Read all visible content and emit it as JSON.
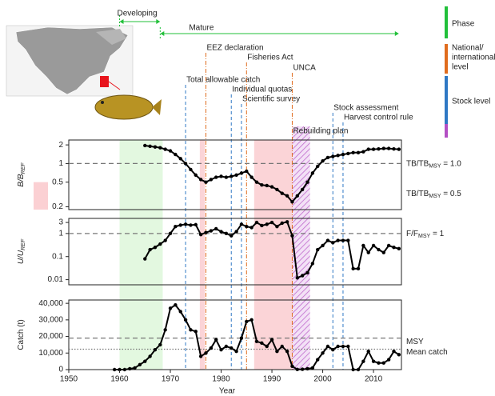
{
  "chart_data": [
    {
      "type": "line",
      "log": true,
      "y_label": [
        "B/B",
        "REF"
      ],
      "ylim": [
        0.18,
        2.4
      ],
      "yticks": [
        0.2,
        0.5,
        1,
        2
      ],
      "xlim": [
        1950,
        2015.5
      ],
      "ref_lines": [
        {
          "value": 1,
          "style": "dashed",
          "label": [
            "TB/TB",
            "MSY",
            " = 1.0"
          ],
          "label_color": "#222"
        }
      ],
      "ref_bands": [
        {
          "value": 0.5,
          "color": "#fbd0d3",
          "label": [
            "TB/TB",
            "MSY",
            " = 0.5"
          ],
          "label_color": "#f0505a"
        }
      ],
      "series": [
        {
          "color": "#000000",
          "x": [
            1965,
            1966,
            1967,
            1968,
            1969,
            1970,
            1971,
            1972,
            1973,
            1974,
            1975,
            1976,
            1977,
            1978,
            1979,
            1980,
            1981,
            1982,
            1983,
            1984,
            1985,
            1986,
            1987,
            1988,
            1989,
            1990,
            1991,
            1992,
            1993,
            1994,
            1995,
            1996,
            1997,
            1998,
            1999,
            2000,
            2001,
            2002,
            2003,
            2004,
            2005,
            2006,
            2007,
            2008,
            2009,
            2010,
            2011,
            2012,
            2013,
            2014,
            2015
          ],
          "values": [
            1.95,
            1.9,
            1.85,
            1.8,
            1.7,
            1.6,
            1.4,
            1.2,
            1.0,
            0.8,
            0.65,
            0.55,
            0.5,
            0.55,
            0.6,
            0.62,
            0.6,
            0.62,
            0.65,
            0.7,
            0.75,
            0.6,
            0.5,
            0.45,
            0.44,
            0.42,
            0.38,
            0.33,
            0.3,
            0.24,
            0.3,
            0.38,
            0.5,
            0.7,
            0.9,
            1.1,
            1.25,
            1.3,
            1.35,
            1.4,
            1.45,
            1.5,
            1.5,
            1.55,
            1.7,
            1.7,
            1.72,
            1.75,
            1.75,
            1.72,
            1.7
          ]
        }
      ]
    },
    {
      "type": "line",
      "log": true,
      "y_label": [
        "U/U",
        "REF"
      ],
      "ylim": [
        0.006,
        4.5
      ],
      "yticks": [
        0.01,
        0.1,
        1,
        3
      ],
      "xlim": [
        1950,
        2015.5
      ],
      "ref_lines": [
        {
          "value": 1,
          "style": "dashed",
          "label": [
            "F/F",
            "MSY",
            " = 1"
          ],
          "label_color": "#222"
        }
      ],
      "series": [
        {
          "color": "#000000",
          "x": [
            1965,
            1966,
            1967,
            1968,
            1969,
            1970,
            1971,
            1972,
            1973,
            1974,
            1975,
            1976,
            1977,
            1978,
            1979,
            1980,
            1981,
            1982,
            1983,
            1984,
            1985,
            1986,
            1987,
            1988,
            1989,
            1990,
            1991,
            1992,
            1993,
            1994,
            1995,
            1996,
            1997,
            1998,
            1999,
            2000,
            2001,
            2002,
            2003,
            2004,
            2005,
            2006,
            2007,
            2008,
            2009,
            2010,
            2011,
            2012,
            2013,
            2014,
            2015
          ],
          "values": [
            0.08,
            0.2,
            0.25,
            0.35,
            0.5,
            1.0,
            2.0,
            2.3,
            2.5,
            2.3,
            2.4,
            0.9,
            1.1,
            1.3,
            1.6,
            1.2,
            1.0,
            0.8,
            1.2,
            2.5,
            2.0,
            1.8,
            3.0,
            2.2,
            2.5,
            3.0,
            2.0,
            2.8,
            3.2,
            0.8,
            0.012,
            0.015,
            0.02,
            0.05,
            0.2,
            0.3,
            0.5,
            0.4,
            0.5,
            0.5,
            0.5,
            0.03,
            0.03,
            0.3,
            0.15,
            0.3,
            0.2,
            0.15,
            0.3,
            0.25,
            0.22
          ]
        }
      ]
    },
    {
      "type": "line",
      "log": false,
      "y_label": [
        "Catch (t)"
      ],
      "ylim": [
        0,
        42000
      ],
      "yticks": [
        0,
        {
          "value": 10000,
          "label": "10,000"
        },
        {
          "value": 20000,
          "label": "20,000"
        },
        {
          "value": 30000,
          "label": "30,000"
        },
        {
          "value": 40000,
          "label": "40,000"
        }
      ],
      "xlim": [
        1950,
        2015.5
      ],
      "xticks": [
        1950,
        1960,
        1970,
        1980,
        1990,
        2000,
        2010
      ],
      "x_label": "Year",
      "ref_lines": [
        {
          "value": 19000,
          "style": "dashed",
          "label": [
            "MSY"
          ],
          "label_color": "#222"
        },
        {
          "value": 12300,
          "style": "dotted",
          "label": [
            "Mean catch"
          ],
          "label_color": "#222"
        }
      ],
      "series": [
        {
          "color": "#000000",
          "x": [
            1959,
            1960,
            1961,
            1962,
            1963,
            1964,
            1965,
            1966,
            1967,
            1968,
            1969,
            1970,
            1971,
            1972,
            1973,
            1974,
            1975,
            1976,
            1977,
            1978,
            1979,
            1980,
            1981,
            1982,
            1983,
            1984,
            1985,
            1986,
            1987,
            1988,
            1989,
            1990,
            1991,
            1992,
            1993,
            1994,
            1995,
            1996,
            1997,
            1998,
            1999,
            2000,
            2001,
            2002,
            2003,
            2004,
            2005,
            2006,
            2007,
            2008,
            2009,
            2010,
            2011,
            2012,
            2013,
            2014,
            2015
          ],
          "values": [
            0,
            0,
            0,
            500,
            1000,
            3000,
            5000,
            8000,
            12000,
            15000,
            24000,
            37000,
            39000,
            35000,
            30000,
            24000,
            23000,
            8000,
            10000,
            13000,
            18000,
            12000,
            14000,
            13000,
            11000,
            19000,
            29000,
            30000,
            17000,
            16000,
            14000,
            18000,
            11000,
            14000,
            11000,
            2000,
            100,
            200,
            500,
            1000,
            6000,
            10000,
            14000,
            12000,
            14000,
            14000,
            14000,
            0,
            0,
            5000,
            11000,
            5000,
            4000,
            4000,
            6000,
            11000,
            9000
          ]
        }
      ]
    }
  ],
  "timeline": {
    "phases": [
      {
        "label": "Developing",
        "start": 1960,
        "end": 1968
      },
      {
        "label": "Mature",
        "start": 1968,
        "end": 2015
      }
    ],
    "phase_color": "#22c03a",
    "shaded_periods": [
      {
        "start": 1960,
        "end": 1968.5,
        "color": "#e3f8e0"
      },
      {
        "start": 1975.8,
        "end": 1976.8,
        "color": "#fbd4d7"
      },
      {
        "start": 1986.5,
        "end": 1994,
        "color": "#fbd4d7"
      },
      {
        "start": 1994,
        "end": 1997.5,
        "color": "#b44fc4",
        "hatched": true,
        "label": "Rebuilding plan"
      }
    ],
    "events": [
      {
        "year": 1973,
        "label": "Total allowable catch",
        "color": "#2f78c4",
        "style": "dashed"
      },
      {
        "year": 1977,
        "label": "EEZ declaration",
        "color": "#e06c1e",
        "style": "dash-dot"
      },
      {
        "year": 1982,
        "label": "Individual quotas",
        "color": "#2f78c4",
        "style": "dashed"
      },
      {
        "year": 1984,
        "label": "Scientific survey",
        "color": "#2f78c4",
        "style": "dashed"
      },
      {
        "year": 1985,
        "label": "Fisheries Act",
        "color": "#e06c1e",
        "style": "dash-dot"
      },
      {
        "year": 1994,
        "label": "UNCA",
        "color": "#e06c1e",
        "style": "dash-dot"
      },
      {
        "year": 2002,
        "label": "Stock assessment",
        "color": "#2f78c4",
        "style": "dashed"
      },
      {
        "year": 2004,
        "label": "Harvest control rule",
        "color": "#2f78c4",
        "style": "dashed"
      }
    ],
    "legend": [
      {
        "color": "#22c03a",
        "label": [
          "Phase"
        ]
      },
      {
        "color": "#e06c1e",
        "label": [
          "National/",
          "international",
          "level"
        ]
      },
      {
        "color": "#2f78c4",
        "label": [
          "Stock level"
        ]
      },
      {
        "color": "#b44fc4"
      }
    ]
  }
}
